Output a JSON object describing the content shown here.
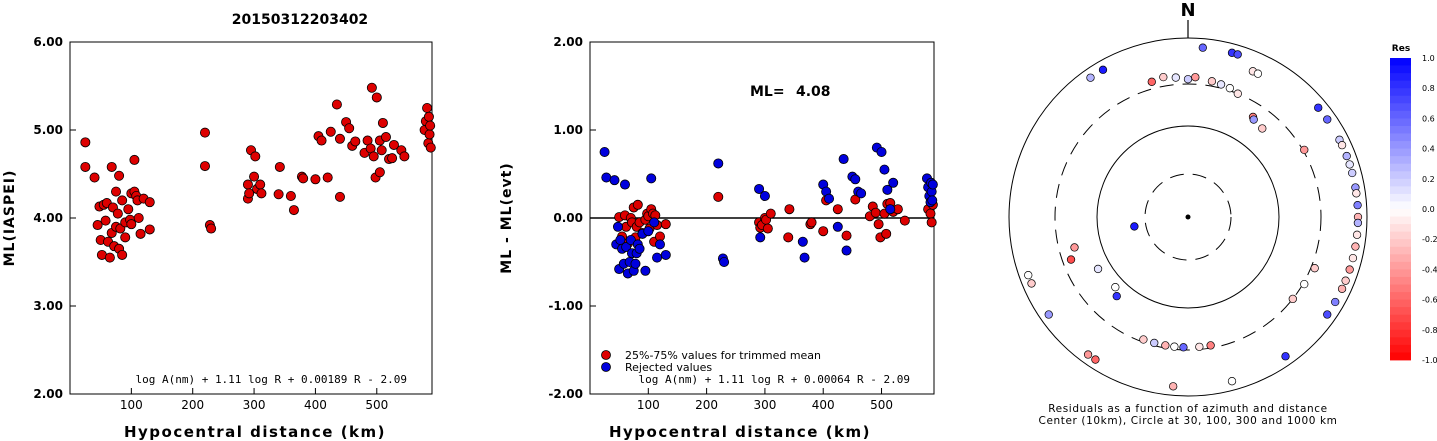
{
  "figure_title": "20150312203402",
  "chart_data": [
    {
      "id": "ml-vs-distance",
      "type": "scatter",
      "xlabel": "Hypocentral distance (km)",
      "ylabel": "ML(IASPEI)",
      "xlim": [
        0,
        590
      ],
      "ylim": [
        2.0,
        6.0
      ],
      "x_ticks": [
        "100",
        "200",
        "300",
        "400",
        "500"
      ],
      "y_ticks": [
        "2.00",
        "3.00",
        "4.00",
        "5.00",
        "6.00"
      ],
      "annotation": "log A(nm) + 1.11 log R + 0.00189 R - 2.09",
      "colors": {
        "accepted": "#dd0000"
      },
      "points": [
        [
          25,
          4.86
        ],
        [
          25,
          4.58
        ],
        [
          40,
          4.46
        ],
        [
          45,
          3.92
        ],
        [
          48,
          4.13
        ],
        [
          50,
          3.75
        ],
        [
          52,
          3.58
        ],
        [
          55,
          4.15
        ],
        [
          58,
          3.97
        ],
        [
          60,
          4.17
        ],
        [
          62,
          3.73
        ],
        [
          65,
          3.55
        ],
        [
          68,
          4.58
        ],
        [
          68,
          3.83
        ],
        [
          70,
          4.12
        ],
        [
          72,
          3.68
        ],
        [
          75,
          4.3
        ],
        [
          75,
          3.9
        ],
        [
          78,
          4.05
        ],
        [
          80,
          3.65
        ],
        [
          80,
          4.48
        ],
        [
          82,
          3.88
        ],
        [
          85,
          4.2
        ],
        [
          85,
          3.58
        ],
        [
          90,
          3.78
        ],
        [
          90,
          3.95
        ],
        [
          95,
          4.1
        ],
        [
          98,
          3.98
        ],
        [
          100,
          3.93
        ],
        [
          100,
          4.28
        ],
        [
          105,
          4.66
        ],
        [
          105,
          4.3
        ],
        [
          108,
          4.25
        ],
        [
          110,
          4.2
        ],
        [
          112,
          4.0
        ],
        [
          115,
          3.82
        ],
        [
          120,
          4.22
        ],
        [
          130,
          4.18
        ],
        [
          130,
          3.87
        ],
        [
          220,
          4.97
        ],
        [
          220,
          4.59
        ],
        [
          228,
          3.92
        ],
        [
          230,
          3.88
        ],
        [
          290,
          4.22
        ],
        [
          290,
          4.38
        ],
        [
          292,
          4.28
        ],
        [
          295,
          4.77
        ],
        [
          300,
          4.47
        ],
        [
          302,
          4.7
        ],
        [
          305,
          4.33
        ],
        [
          310,
          4.38
        ],
        [
          312,
          4.28
        ],
        [
          340,
          4.27
        ],
        [
          342,
          4.58
        ],
        [
          360,
          4.25
        ],
        [
          365,
          4.09
        ],
        [
          378,
          4.47
        ],
        [
          380,
          4.45
        ],
        [
          400,
          4.44
        ],
        [
          405,
          4.93
        ],
        [
          410,
          4.88
        ],
        [
          420,
          4.46
        ],
        [
          425,
          4.98
        ],
        [
          435,
          5.29
        ],
        [
          440,
          4.24
        ],
        [
          440,
          4.9
        ],
        [
          450,
          5.09
        ],
        [
          455,
          5.02
        ],
        [
          460,
          4.82
        ],
        [
          465,
          4.87
        ],
        [
          480,
          4.74
        ],
        [
          485,
          4.88
        ],
        [
          490,
          4.79
        ],
        [
          492,
          5.48
        ],
        [
          495,
          4.7
        ],
        [
          498,
          4.46
        ],
        [
          500,
          5.37
        ],
        [
          505,
          4.52
        ],
        [
          505,
          4.88
        ],
        [
          508,
          4.77
        ],
        [
          510,
          5.08
        ],
        [
          515,
          4.92
        ],
        [
          520,
          4.67
        ],
        [
          525,
          4.68
        ],
        [
          528,
          4.83
        ],
        [
          540,
          4.77
        ],
        [
          545,
          4.7
        ],
        [
          578,
          5.0
        ],
        [
          580,
          5.1
        ],
        [
          582,
          5.25
        ],
        [
          584,
          4.85
        ],
        [
          585,
          5.15
        ],
        [
          586,
          4.95
        ],
        [
          587,
          5.05
        ],
        [
          588,
          4.8
        ]
      ]
    },
    {
      "id": "residual-vs-distance",
      "type": "scatter",
      "xlabel": "Hypocentral distance (km)",
      "ylabel": "ML - ML(evt)",
      "xlim": [
        0,
        590
      ],
      "ylim": [
        -2.0,
        2.0
      ],
      "x_ticks": [
        "100",
        "200",
        "300",
        "400",
        "500"
      ],
      "y_ticks": [
        "-2.00",
        "-1.00",
        "0.00",
        "1.00",
        "2.00"
      ],
      "zero_line": 0,
      "ml_label": "ML=",
      "ml_value": "4.08",
      "legend": [
        {
          "label": "25%-75% values for trimmed mean",
          "color": "#dd0000"
        },
        {
          "label": "Rejected values",
          "color": "#0000dd"
        }
      ],
      "annotation": "log A(nm) + 1.11 log R + 0.00064 R - 2.09",
      "series": [
        {
          "name": "25%-75% values for trimmed mean",
          "points": [
            [
              50,
              0.01
            ],
            [
              55,
              -0.21
            ],
            [
              60,
              0.03
            ],
            [
              62,
              -0.1
            ],
            [
              65,
              -0.29
            ],
            [
              70,
              0.0
            ],
            [
              72,
              -0.05
            ],
            [
              75,
              0.12
            ],
            [
              78,
              -0.22
            ],
            [
              80,
              -0.1
            ],
            [
              82,
              0.15
            ],
            [
              85,
              -0.05
            ],
            [
              90,
              -0.17
            ],
            [
              95,
              -0.02
            ],
            [
              98,
              0.05
            ],
            [
              100,
              0.02
            ],
            [
              102,
              -0.12
            ],
            [
              105,
              0.1
            ],
            [
              108,
              0.05
            ],
            [
              110,
              -0.27
            ],
            [
              112,
              0.03
            ],
            [
              115,
              -0.08
            ],
            [
              120,
              -0.21
            ],
            [
              130,
              -0.07
            ],
            [
              220,
              0.24
            ],
            [
              290,
              -0.05
            ],
            [
              292,
              -0.11
            ],
            [
              295,
              -0.08
            ],
            [
              300,
              0.0
            ],
            [
              302,
              -0.02
            ],
            [
              305,
              -0.12
            ],
            [
              310,
              0.05
            ],
            [
              340,
              -0.22
            ],
            [
              342,
              0.1
            ],
            [
              378,
              -0.07
            ],
            [
              380,
              -0.05
            ],
            [
              400,
              -0.15
            ],
            [
              405,
              0.2
            ],
            [
              425,
              0.1
            ],
            [
              440,
              -0.2
            ],
            [
              455,
              0.21
            ],
            [
              480,
              0.02
            ],
            [
              485,
              0.13
            ],
            [
              490,
              0.06
            ],
            [
              495,
              -0.07
            ],
            [
              498,
              -0.22
            ],
            [
              505,
              0.05
            ],
            [
              508,
              -0.18
            ],
            [
              510,
              0.16
            ],
            [
              515,
              0.17
            ],
            [
              520,
              0.07
            ],
            [
              528,
              0.1
            ],
            [
              540,
              -0.03
            ],
            [
              580,
              0.1
            ],
            [
              584,
              0.05
            ],
            [
              586,
              -0.05
            ],
            [
              588,
              0.15
            ]
          ]
        },
        {
          "name": "Rejected values",
          "points": [
            [
              25,
              0.75
            ],
            [
              28,
              0.46
            ],
            [
              42,
              0.43
            ],
            [
              45,
              -0.3
            ],
            [
              48,
              -0.1
            ],
            [
              50,
              -0.58
            ],
            [
              52,
              -0.25
            ],
            [
              55,
              -0.35
            ],
            [
              58,
              -0.52
            ],
            [
              60,
              0.38
            ],
            [
              62,
              -0.33
            ],
            [
              65,
              -0.63
            ],
            [
              68,
              -0.5
            ],
            [
              70,
              -0.25
            ],
            [
              72,
              -0.4
            ],
            [
              75,
              -0.6
            ],
            [
              78,
              -0.52
            ],
            [
              80,
              -0.4
            ],
            [
              82,
              -0.3
            ],
            [
              85,
              -0.35
            ],
            [
              90,
              -0.18
            ],
            [
              95,
              -0.6
            ],
            [
              100,
              -0.15
            ],
            [
              105,
              0.45
            ],
            [
              110,
              -0.05
            ],
            [
              115,
              -0.45
            ],
            [
              120,
              -0.3
            ],
            [
              130,
              -0.42
            ],
            [
              220,
              0.62
            ],
            [
              228,
              -0.46
            ],
            [
              230,
              -0.5
            ],
            [
              290,
              0.33
            ],
            [
              292,
              -0.22
            ],
            [
              300,
              0.25
            ],
            [
              365,
              -0.27
            ],
            [
              368,
              -0.45
            ],
            [
              400,
              0.38
            ],
            [
              405,
              0.3
            ],
            [
              410,
              0.22
            ],
            [
              425,
              -0.1
            ],
            [
              435,
              0.67
            ],
            [
              440,
              -0.37
            ],
            [
              450,
              0.47
            ],
            [
              455,
              0.44
            ],
            [
              460,
              0.3
            ],
            [
              465,
              0.28
            ],
            [
              492,
              0.8
            ],
            [
              500,
              0.75
            ],
            [
              505,
              0.55
            ],
            [
              510,
              0.32
            ],
            [
              515,
              0.1
            ],
            [
              520,
              0.4
            ],
            [
              578,
              0.45
            ],
            [
              580,
              0.35
            ],
            [
              582,
              0.25
            ],
            [
              584,
              0.18
            ],
            [
              585,
              0.4
            ],
            [
              586,
              0.3
            ],
            [
              587,
              0.2
            ],
            [
              588,
              0.38
            ]
          ]
        }
      ]
    },
    {
      "id": "residual-azimuth-map",
      "type": "scatter",
      "north_label": "N",
      "caption_line1": "Residuals as a function of azimuth and distance",
      "caption_line2": "Center (10km), Circle at 30, 100, 300 and 1000 km",
      "colorbar_title": "Res",
      "colorbar_labels": [
        "1.0",
        "0.8",
        "0.6",
        "0.4",
        "0.2",
        "0.0",
        "-0.2",
        "-0.4",
        "-0.6",
        "-0.8",
        "-1.0"
      ],
      "colors": {
        "positive": "#0000ff",
        "zero": "#ffffff",
        "negative": "#ff0000"
      },
      "stations": [
        [
          5,
          1000,
          0.6
        ],
        [
          15,
          1000,
          0.8
        ],
        [
          17,
          1000,
          0.7
        ],
        [
          24,
          600,
          -0.1
        ],
        [
          26,
          600,
          0.0
        ],
        [
          325,
          900,
          0.3
        ],
        [
          330,
          900,
          0.9
        ],
        [
          50,
          950,
          0.8
        ],
        [
          55,
          950,
          0.6
        ],
        [
          63,
          950,
          0.2
        ],
        [
          65,
          900,
          -0.1
        ],
        [
          69,
          900,
          0.3
        ],
        [
          72,
          850,
          0.1
        ],
        [
          75,
          900,
          0.2
        ],
        [
          80,
          950,
          0.4
        ],
        [
          82,
          880,
          -0.1
        ],
        [
          86,
          950,
          0.5
        ],
        [
          90,
          880,
          -0.3
        ],
        [
          92,
          950,
          0.3
        ],
        [
          96,
          880,
          -0.1
        ],
        [
          100,
          880,
          -0.3
        ],
        [
          104,
          850,
          -0.1
        ],
        [
          108,
          880,
          -0.4
        ],
        [
          112,
          900,
          -0.2
        ],
        [
          115,
          820,
          -0.3
        ],
        [
          120,
          900,
          0.5
        ],
        [
          125,
          900,
          0.7
        ],
        [
          145,
          1000,
          0.8
        ],
        [
          165,
          1000,
          0.0
        ],
        [
          185,
          1000,
          -0.3
        ],
        [
          235,
          1000,
          0.4
        ],
        [
          213,
          880,
          -0.6
        ],
        [
          216,
          880,
          -0.4
        ],
        [
          247,
          900,
          -0.2
        ],
        [
          250,
          870,
          0.0
        ],
        [
          345,
          360,
          -0.6
        ],
        [
          350,
          380,
          -0.2
        ],
        [
          355,
          360,
          0.1
        ],
        [
          0,
          340,
          0.2
        ],
        [
          3,
          360,
          -0.4
        ],
        [
          10,
          340,
          -0.2
        ],
        [
          14,
          330,
          0.1
        ],
        [
          18,
          320,
          0.0
        ],
        [
          22,
          300,
          -0.1
        ],
        [
          33,
          210,
          -0.5
        ],
        [
          34,
          200,
          0.4
        ],
        [
          40,
          190,
          -0.2
        ],
        [
          60,
          310,
          -0.4
        ],
        [
          112,
          330,
          -0.2
        ],
        [
          120,
          310,
          0.0
        ],
        [
          128,
          300,
          -0.2
        ],
        [
          170,
          280,
          -0.5
        ],
        [
          175,
          280,
          -0.1
        ],
        [
          182,
          280,
          0.6
        ],
        [
          186,
          280,
          0.0
        ],
        [
          190,
          280,
          -0.3
        ],
        [
          195,
          280,
          0.2
        ],
        [
          200,
          280,
          -0.2
        ],
        [
          222,
          150,
          0.8
        ],
        [
          226,
          130,
          0.0
        ],
        [
          240,
          140,
          0.1
        ],
        [
          250,
          240,
          -0.7
        ],
        [
          255,
          200,
          -0.4
        ],
        [
          260,
          40,
          0.9
        ]
      ]
    }
  ]
}
